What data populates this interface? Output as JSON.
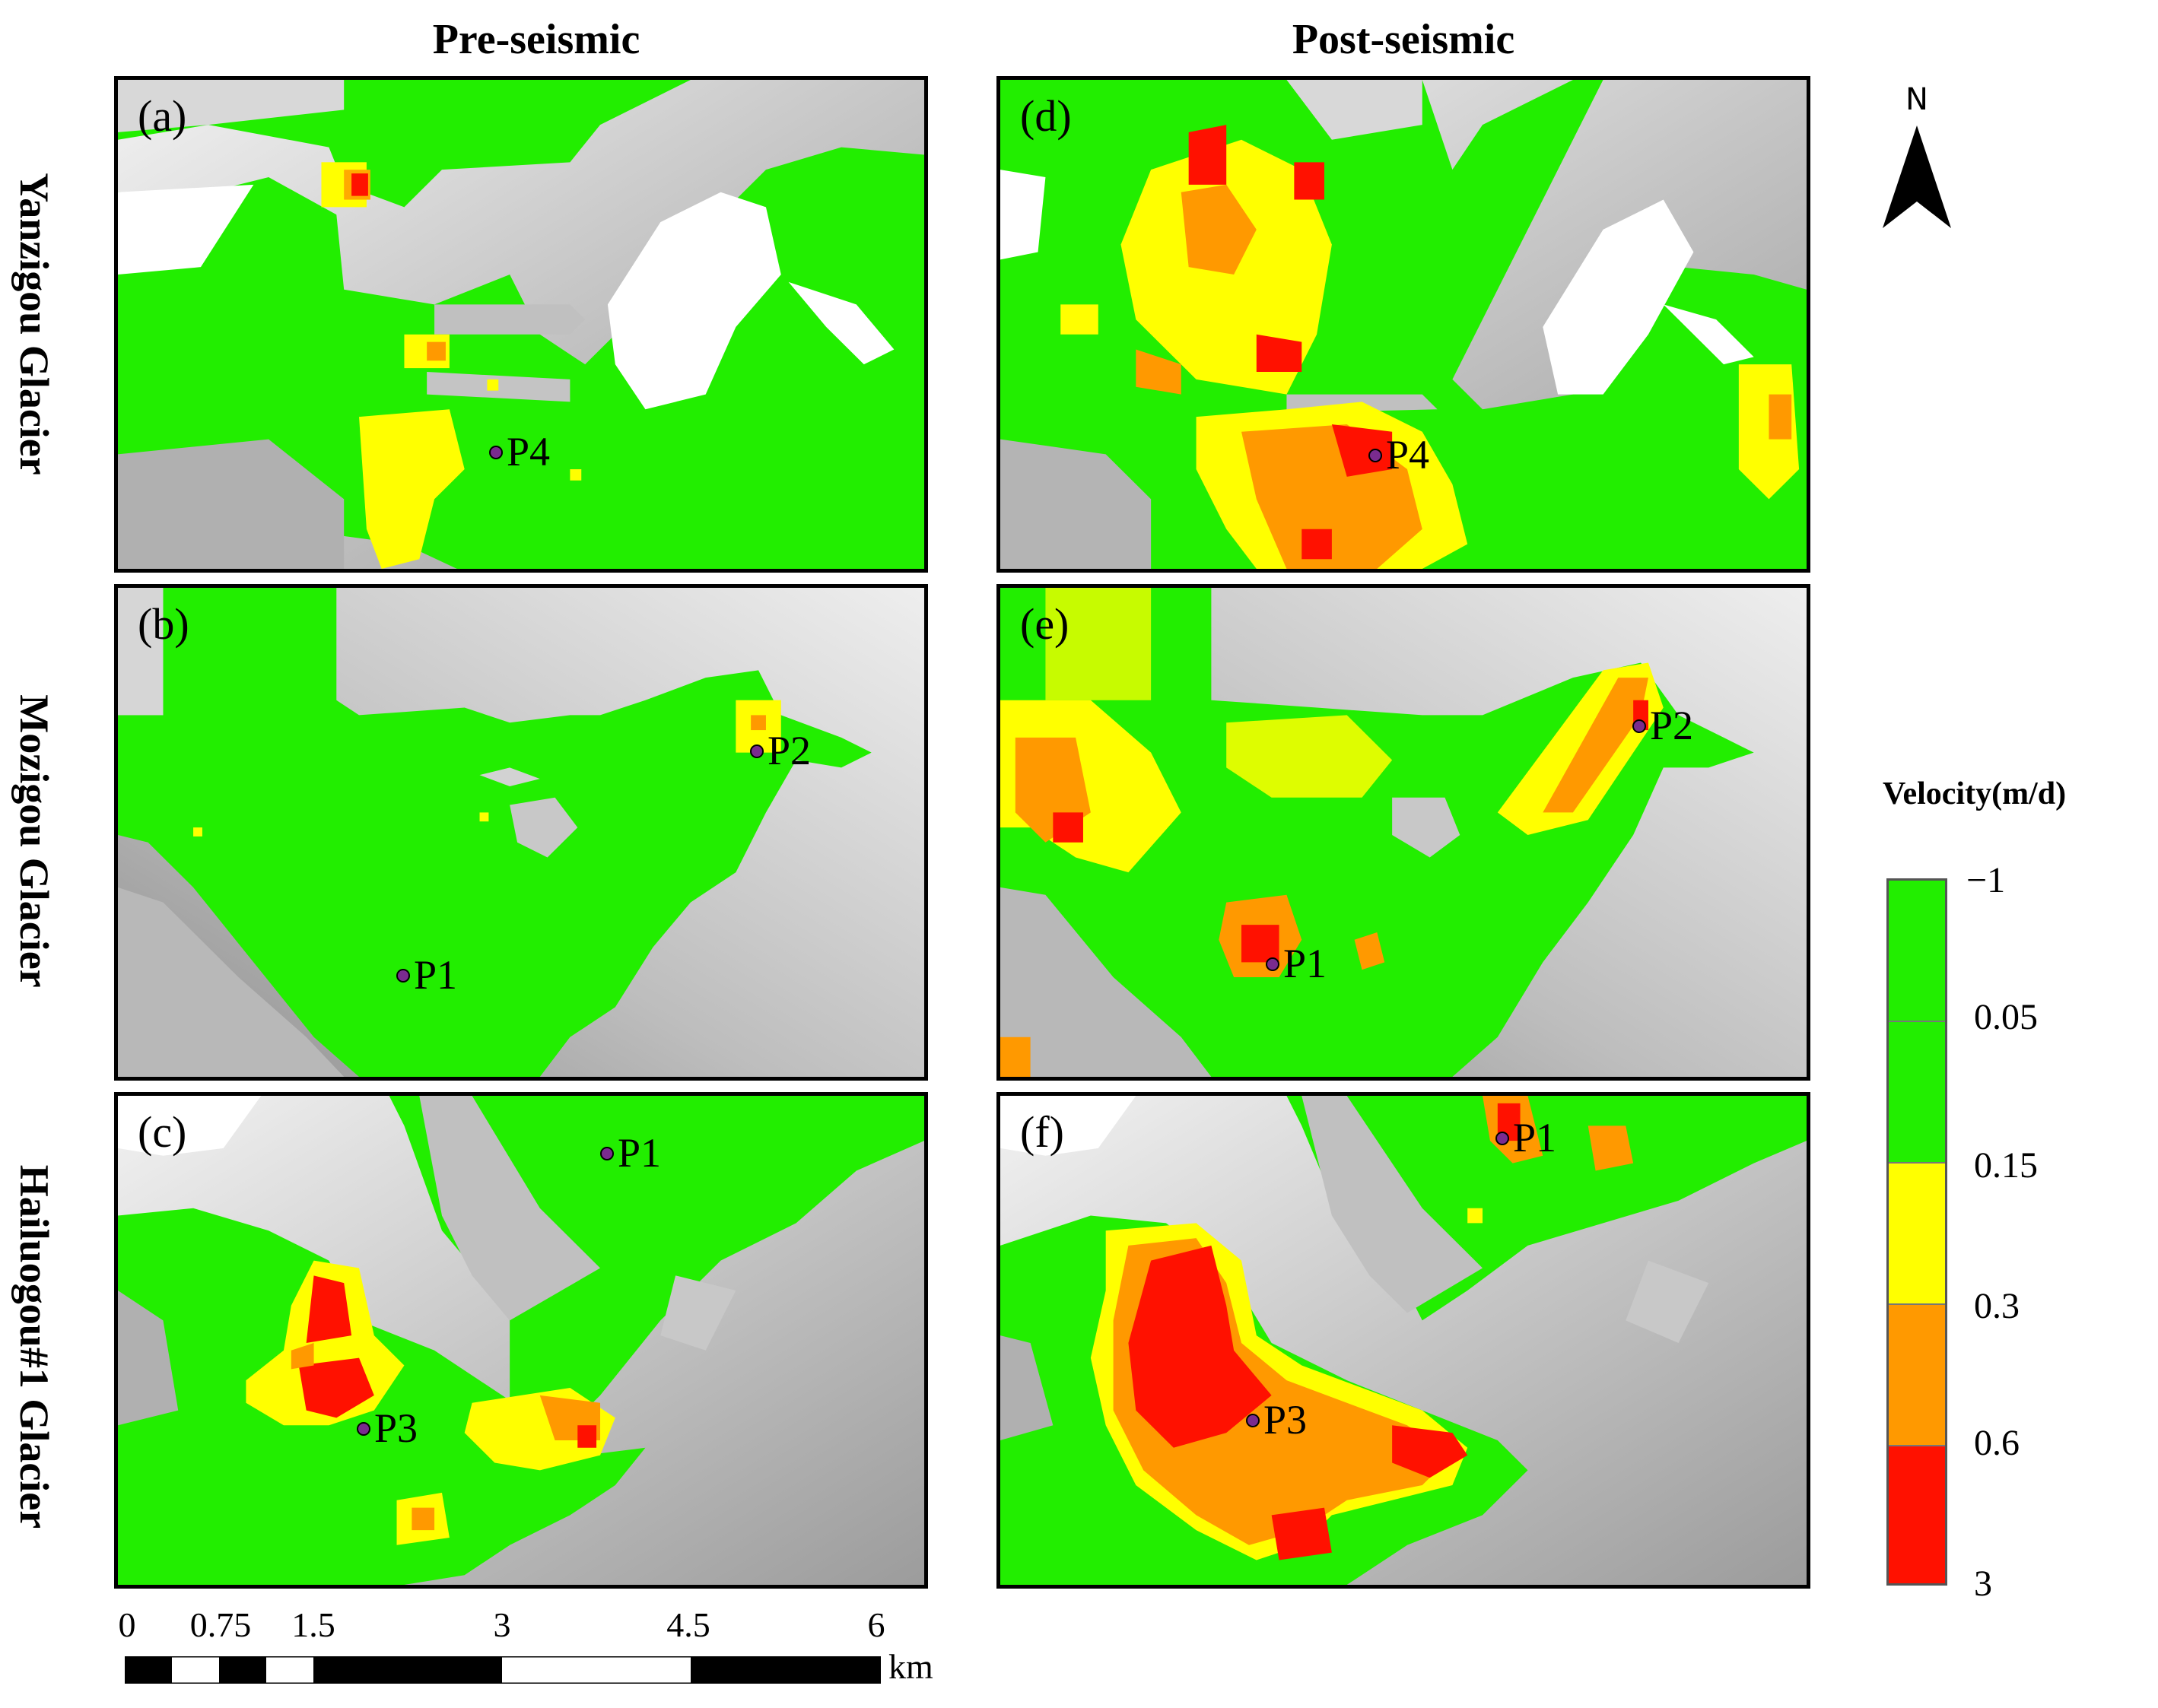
{
  "columns": {
    "left": "Pre-seismic",
    "right": "Post-seismic"
  },
  "rows": [
    "Yanzigou Glacier",
    "Mozigou Glacier",
    "Hailuogou#1 Glacier"
  ],
  "panels": [
    {
      "label": "(a)",
      "points": [
        {
          "name": "P4"
        }
      ]
    },
    {
      "label": "(b)",
      "points": [
        {
          "name": "P2"
        },
        {
          "name": "P1"
        }
      ]
    },
    {
      "label": "(c)",
      "points": [
        {
          "name": "P1"
        },
        {
          "name": "P3"
        }
      ]
    },
    {
      "label": "(d)",
      "points": [
        {
          "name": "P4"
        }
      ]
    },
    {
      "label": "(e)",
      "points": [
        {
          "name": "P2"
        },
        {
          "name": "P1"
        }
      ]
    },
    {
      "label": "(f)",
      "points": [
        {
          "name": "P1"
        },
        {
          "name": "P3"
        }
      ]
    }
  ],
  "north_arrow": {
    "label": "N"
  },
  "legend": {
    "title": "Velocity(m/d)",
    "ticks": [
      "−1",
      "0.05",
      "0.15",
      "0.3",
      "0.6",
      "3"
    ],
    "classes": [
      {
        "range": "-1 to 0.05",
        "color": "#22ee00"
      },
      {
        "range": "0.05 to 0.15",
        "color": "#22ee00"
      },
      {
        "range": "0.15 to 0.3",
        "color": "#ffff00"
      },
      {
        "range": "0.3 to 0.6",
        "color": "#ff9900"
      },
      {
        "range": "0.6 to 3",
        "color": "#ff1100"
      }
    ]
  },
  "scale_bar": {
    "ticks": [
      "0",
      "0.75",
      "1.5",
      "3",
      "4.5",
      "6"
    ],
    "unit": "km"
  },
  "colors": {
    "glacier": "#22ee00",
    "terrain_light": "#ececec",
    "terrain_dark": "#a8a8a8",
    "point": "#7a2b8f"
  }
}
